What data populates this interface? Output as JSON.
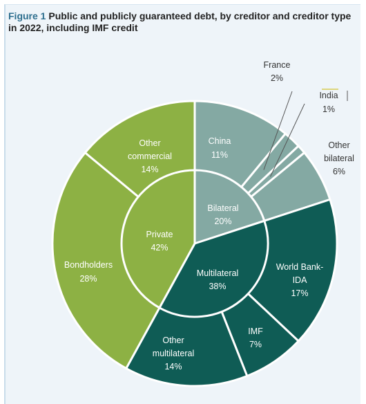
{
  "figure_label": "Figure 1",
  "title": "Public and publicly guaranteed debt, by creditor and creditor type in 2022, including IMF credit",
  "colors": {
    "private": "#8db144",
    "bilateral": "#84a9a3",
    "multilateral": "#0f5c55",
    "panel_bg": "#eef4f9",
    "title_accent": "#2d6e8e"
  },
  "chart_data": {
    "type": "pie",
    "inner": [
      {
        "name": "Private",
        "value": 42,
        "label": "42%",
        "color": "#8db144"
      },
      {
        "name": "Bilateral",
        "value": 20,
        "label": "20%",
        "color": "#84a9a3"
      },
      {
        "name": "Multilateral",
        "value": 38,
        "label": "38%",
        "color": "#0f5c55"
      }
    ],
    "outer": [
      {
        "name": "China",
        "group": "Bilateral",
        "value": 11,
        "label": "11%",
        "color": "#84a9a3"
      },
      {
        "name": "France",
        "group": "Bilateral",
        "value": 2,
        "label": "2%",
        "color": "#84a9a3"
      },
      {
        "name": "India",
        "group": "Bilateral",
        "value": 1,
        "label": "1%",
        "color": "#84a9a3"
      },
      {
        "name": "Other bilateral",
        "group": "Bilateral",
        "value": 6,
        "label": "6%",
        "color": "#84a9a3"
      },
      {
        "name": "World Bank-IDA",
        "group": "Multilateral",
        "value": 17,
        "label": "17%",
        "color": "#0f5c55"
      },
      {
        "name": "IMF",
        "group": "Multilateral",
        "value": 7,
        "label": "7%",
        "color": "#0f5c55"
      },
      {
        "name": "Other multilateral",
        "group": "Multilateral",
        "value": 14,
        "label": "14%",
        "color": "#0f5c55"
      },
      {
        "name": "Bondholders",
        "group": "Private",
        "value": 28,
        "label": "28%",
        "color": "#8db144"
      },
      {
        "name": "Other commercial",
        "group": "Private",
        "value": 14,
        "label": "14%",
        "color": "#8db144"
      }
    ]
  }
}
